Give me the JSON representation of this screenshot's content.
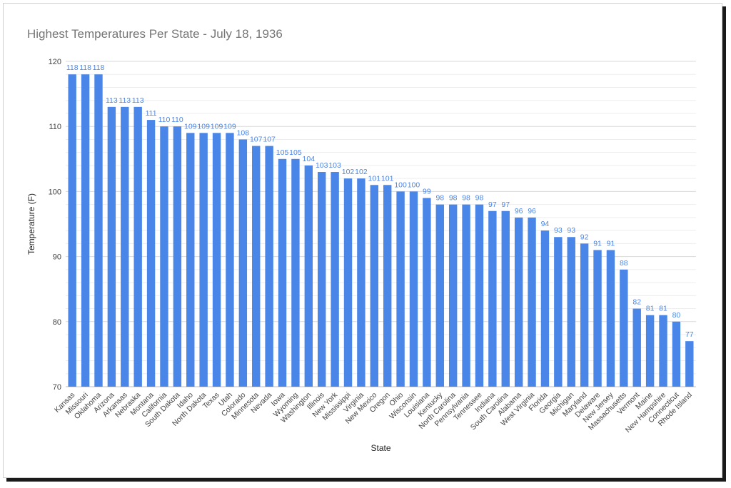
{
  "chart_data": {
    "type": "bar",
    "title": "Highest Temperatures Per State - July 18, 1936",
    "xlabel": "State",
    "ylabel": "Temperature (F)",
    "ylim": [
      70,
      120
    ],
    "yticks": [
      70,
      80,
      90,
      100,
      110,
      120
    ],
    "grid": true,
    "bar_color": "#4a86e8",
    "categories": [
      "Kansas",
      "Missouri",
      "Oklahoma",
      "Arizona",
      "Arkansas",
      "Nebraska",
      "Montana",
      "California",
      "South Dakota",
      "Idaho",
      "North Dakota",
      "Texas",
      "Utah",
      "Colorado",
      "Minnesota",
      "Nevada",
      "Iowa",
      "Wyoming",
      "Washington",
      "Illinois",
      "New York",
      "Mississippi",
      "Virginia",
      "New Mexico",
      "Oregon",
      "Ohio",
      "Wisconsin",
      "Louisiana",
      "Kentucky",
      "North Carolina",
      "Pennsylvania",
      "Tennessee",
      "Indiana",
      "South Carolina",
      "Alabama",
      "West Virginia",
      "Florida",
      "Georgia",
      "Michigan",
      "Maryland",
      "Delaware",
      "New Jersey",
      "Massachusetts",
      "Vermont",
      "Maine",
      "New Hampshire",
      "Connecticut",
      "Rhode Island"
    ],
    "values": [
      118,
      118,
      118,
      113,
      113,
      113,
      111,
      110,
      110,
      109,
      109,
      109,
      109,
      108,
      107,
      107,
      105,
      105,
      104,
      103,
      103,
      102,
      102,
      101,
      101,
      100,
      100,
      99,
      98,
      98,
      98,
      98,
      97,
      97,
      96,
      96,
      94,
      93,
      93,
      92,
      91,
      91,
      88,
      82,
      81,
      81,
      80,
      77
    ]
  }
}
